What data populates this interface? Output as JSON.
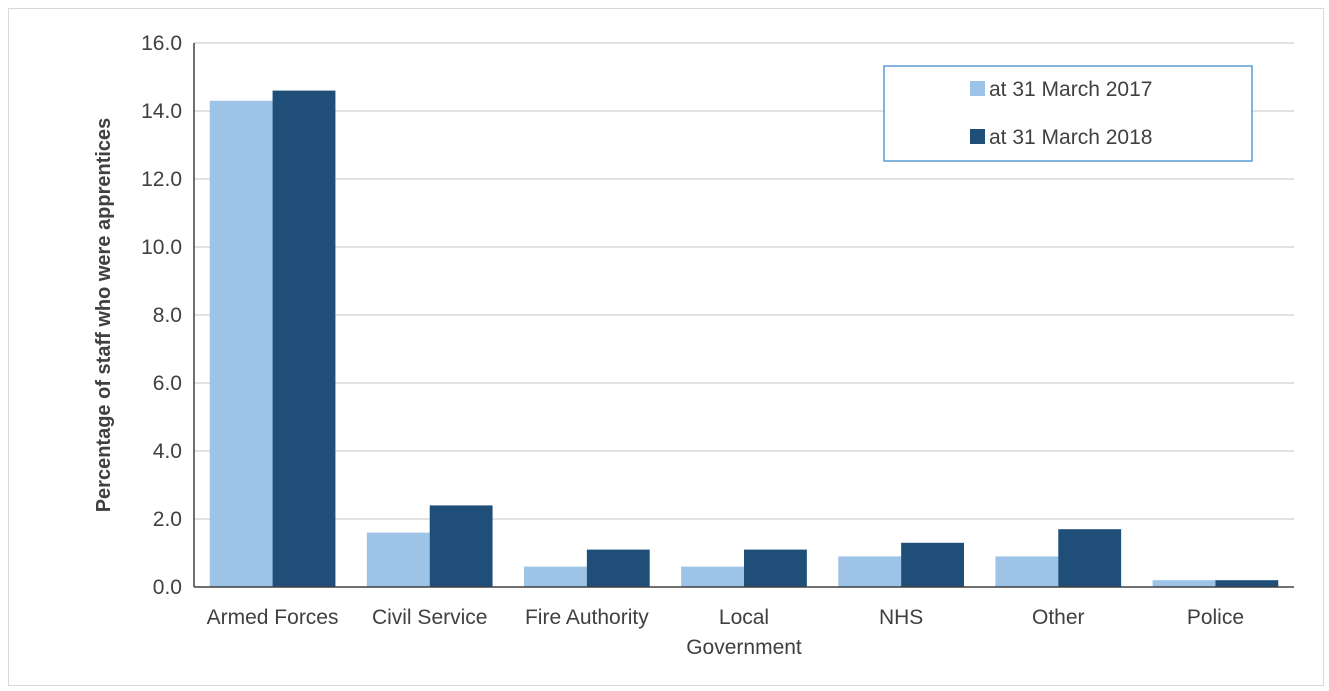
{
  "chart_data": {
    "type": "bar",
    "title": "",
    "xlabel": "",
    "ylabel": "Percentage of staff who were apprentices",
    "ylim": [
      0,
      16
    ],
    "yticks": [
      "0.0",
      "2.0",
      "4.0",
      "6.0",
      "8.0",
      "10.0",
      "12.0",
      "14.0",
      "16.0"
    ],
    "grid": true,
    "legend_position": "top-right",
    "categories": [
      [
        "Armed Forces"
      ],
      [
        "Civil Service"
      ],
      [
        "Fire Authority"
      ],
      [
        "Local",
        "Government"
      ],
      [
        "NHS"
      ],
      [
        "Other"
      ],
      [
        "Police"
      ]
    ],
    "series": [
      {
        "name": "at 31 March 2017",
        "color": "#9dc3e6",
        "values": [
          14.3,
          1.6,
          0.6,
          0.6,
          0.9,
          0.9,
          0.2
        ]
      },
      {
        "name": "at 31 March 2018",
        "color": "#1f4e79",
        "values": [
          14.6,
          2.4,
          1.1,
          1.1,
          1.3,
          1.7,
          0.2
        ]
      }
    ],
    "colors": {
      "grid": "#d9d9d9",
      "axis": "#404040",
      "legend_border": "#5b9bd5"
    }
  }
}
